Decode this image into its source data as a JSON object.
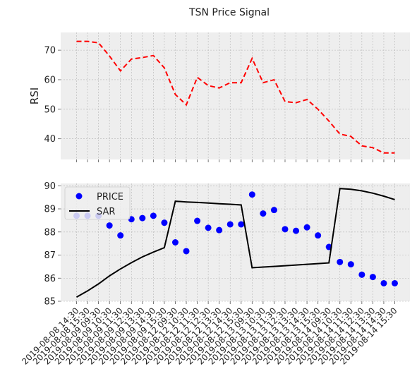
{
  "chart_data": {
    "type": "line",
    "title": "TSN Price Signal",
    "categories": [
      "2019-08-08 14:30",
      "2019-08-08 15:30",
      "2019-08-09 09:30",
      "2019-08-09 10:30",
      "2019-08-09 11:30",
      "2019-08-09 12:30",
      "2019-08-09 13:30",
      "2019-08-09 14:30",
      "2019-08-09 15:30",
      "2019-08-12 09:30",
      "2019-08-12 10:30",
      "2019-08-12 11:30",
      "2019-08-12 12:30",
      "2019-08-12 13:30",
      "2019-08-12 14:30",
      "2019-08-12 15:30",
      "2019-08-13 09:30",
      "2019-08-13 10:30",
      "2019-08-13 11:30",
      "2019-08-13 12:30",
      "2019-08-13 13:30",
      "2019-08-13 14:30",
      "2019-08-13 15:30",
      "2019-08-14 09:30",
      "2019-08-14 10:30",
      "2019-08-14 11:30",
      "2019-08-14 12:30",
      "2019-08-14 13:30",
      "2019-08-14 14:30",
      "2019-08-14 15:30"
    ],
    "panels": [
      {
        "ylabel": "RSI",
        "ylim": [
          33,
          76
        ],
        "yticks": [
          40,
          50,
          60,
          70
        ],
        "grid": true,
        "series": [
          {
            "style": "dashed",
            "color": "#ff0000",
            "values": [
              73.0,
              73.0,
              72.5,
              68.0,
              63.0,
              67.0,
              67.5,
              68.2,
              64.0,
              55.0,
              51.5,
              60.8,
              58.0,
              57.2,
              59.0,
              59.0,
              67.2,
              59.0,
              60.0,
              52.6,
              52.2,
              53.3,
              50.0,
              46.0,
              41.6,
              40.8,
              37.6,
              37.0,
              35.2,
              35.2
            ]
          }
        ]
      },
      {
        "ylabel": "",
        "ylim": [
          85,
          90.1
        ],
        "yticks": [
          85,
          86,
          87,
          88,
          89,
          90
        ],
        "grid": true,
        "legend": "upper-left",
        "series": [
          {
            "name": "PRICE",
            "style": "markers",
            "color": "#0000ff",
            "values": [
              88.7,
              88.7,
              88.7,
              88.28,
              87.85,
              88.55,
              88.6,
              88.7,
              88.4,
              87.55,
              87.17,
              88.48,
              88.18,
              88.08,
              88.33,
              88.33,
              89.62,
              88.8,
              88.95,
              88.12,
              88.05,
              88.2,
              87.85,
              87.35,
              86.7,
              86.6,
              86.15,
              86.05,
              85.78,
              85.78
            ]
          },
          {
            "name": "SAR",
            "style": "solid",
            "color": "#000000",
            "values": [
              85.18,
              85.45,
              85.75,
              86.1,
              86.4,
              86.67,
              86.92,
              87.13,
              87.32,
              89.33,
              89.3,
              89.28,
              89.25,
              89.22,
              89.2,
              89.17,
              86.45,
              86.48,
              86.51,
              86.54,
              86.57,
              86.6,
              86.63,
              86.66,
              89.88,
              89.85,
              89.78,
              89.68,
              89.55,
              89.4
            ]
          }
        ]
      }
    ]
  }
}
